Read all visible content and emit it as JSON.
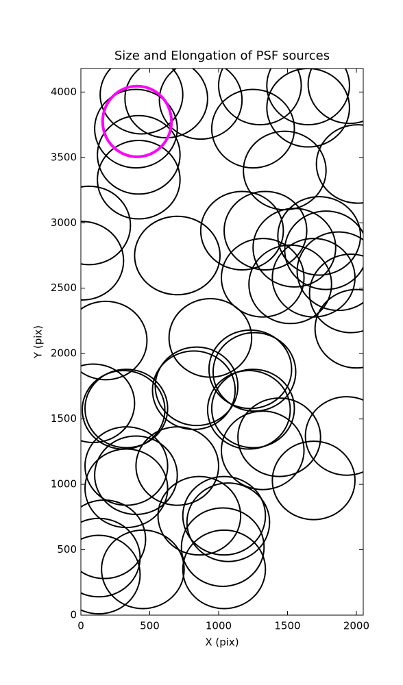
{
  "chart_data": {
    "type": "ellipse",
    "title": "Size and Elongation of PSF sources",
    "x_label": "X (pix)",
    "y_label": "Y (pix)",
    "xlim": [
      0,
      2050
    ],
    "ylim": [
      0,
      4180
    ],
    "xticks": [
      0,
      500,
      1000,
      1500,
      2000
    ],
    "yticks": [
      0,
      500,
      1000,
      1500,
      2000,
      2500,
      3000,
      3500,
      4000
    ],
    "grid": false,
    "series": [
      {
        "color": "#000000",
        "x": [
          440,
          620,
          870,
          1300,
          1650,
          1950,
          1650,
          1250,
          400,
          420,
          420,
          1480,
          2010,
          60,
          10,
          700,
          1340,
          1170,
          1730,
          1780,
          1550,
          1870,
          1320,
          1520,
          1690,
          1960,
          2000,
          180,
          940,
          1230,
          1260,
          90,
          310,
          330,
          820,
          840,
          1250,
          1220,
          1440,
          1930,
          1320,
          1690,
          330,
          400,
          330,
          700,
          860,
          1040,
          1070,
          1030,
          1040,
          170,
          130,
          130,
          450
        ],
        "y": [
          3980,
          3950,
          3940,
          4050,
          4050,
          4060,
          3880,
          3720,
          3720,
          3520,
          3330,
          3400,
          3450,
          2980,
          2710,
          2750,
          2940,
          2940,
          2900,
          2790,
          2810,
          2630,
          2580,
          2530,
          2580,
          2460,
          2190,
          2100,
          2120,
          1880,
          1860,
          1620,
          1570,
          1580,
          1720,
          1750,
          1580,
          1570,
          1360,
          1370,
          1260,
          1030,
          1140,
          1070,
          970,
          1140,
          760,
          760,
          710,
          520,
          350,
          580,
          440,
          310,
          350
        ],
        "widths": [
          600,
          600,
          600,
          600,
          600,
          600,
          600,
          600,
          600,
          600,
          600,
          600,
          600,
          600,
          600,
          620,
          600,
          600,
          600,
          600,
          600,
          600,
          600,
          600,
          600,
          600,
          600,
          600,
          600,
          600,
          600,
          600,
          600,
          600,
          600,
          600,
          600,
          600,
          600,
          600,
          600,
          600,
          600,
          600,
          600,
          600,
          600,
          600,
          600,
          600,
          600,
          600,
          600,
          600,
          600
        ],
        "heights": [
          600,
          600,
          600,
          600,
          600,
          600,
          600,
          600,
          600,
          600,
          600,
          600,
          600,
          600,
          600,
          600,
          600,
          600,
          600,
          600,
          600,
          600,
          600,
          600,
          600,
          600,
          600,
          600,
          600,
          600,
          600,
          600,
          600,
          600,
          600,
          600,
          600,
          600,
          600,
          600,
          600,
          600,
          600,
          600,
          600,
          600,
          600,
          600,
          600,
          600,
          600,
          600,
          600,
          600,
          600
        ]
      },
      {
        "color": "#ff00ff",
        "x": [
          408
        ],
        "y": [
          3775
        ],
        "widths": [
          500
        ],
        "heights": [
          540
        ]
      }
    ]
  }
}
